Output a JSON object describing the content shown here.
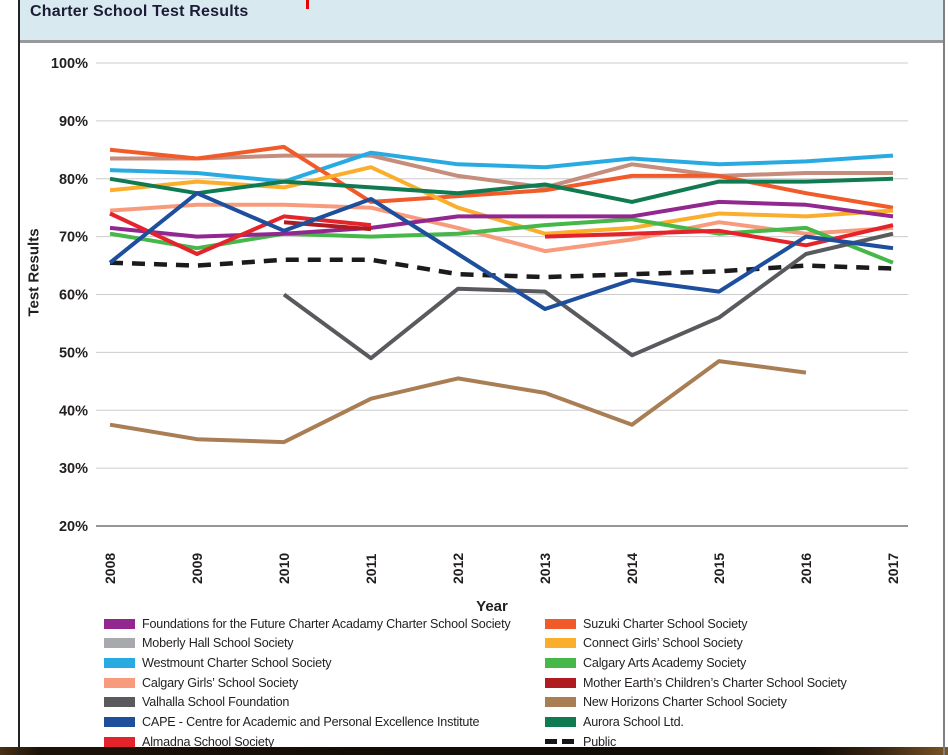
{
  "window": {
    "title_bar": {
      "title": "Charter School Test Results"
    }
  },
  "chart_data": {
    "type": "line",
    "title": "Charter School Test Results",
    "xlabel": "Year",
    "ylabel": "Test Results",
    "x": [
      "2008",
      "2009",
      "2010",
      "2011",
      "2012",
      "2013",
      "2014",
      "2015",
      "2016",
      "2017"
    ],
    "ylim": [
      20,
      100
    ],
    "yticks": [
      "100%",
      "90%",
      "80%",
      "70%",
      "60%",
      "50%",
      "40%",
      "30%",
      "20%"
    ],
    "grid": true,
    "legend_position": "bottom two-column",
    "series": [
      {
        "name": "Foundations for the Future Charter Acadamy Charter School Society",
        "color": "#92278F",
        "values": [
          71.5,
          70,
          70.5,
          71.5,
          73.5,
          73.5,
          73.5,
          76,
          75.5,
          73.5
        ]
      },
      {
        "name": "Moberly Hall School Society",
        "color": "#C68C7C",
        "legend_color": "#A7A9AC",
        "values": [
          83.5,
          83.5,
          84,
          84,
          80.5,
          78.5,
          82.5,
          80.5,
          81,
          81
        ]
      },
      {
        "name": "Westmount Charter School Society",
        "color": "#29ABE2",
        "values": [
          81.5,
          81,
          79.5,
          84.5,
          82.5,
          82,
          83.5,
          82.5,
          83,
          84
        ]
      },
      {
        "name": "Calgary Girls’ School Society",
        "color": "#F89B7C",
        "values": [
          74.5,
          75.5,
          75.5,
          75,
          71.5,
          67.5,
          69.5,
          72.5,
          70.5,
          71.5
        ]
      },
      {
        "name": "Valhalla School Foundation",
        "color": "#585A5E",
        "values": [
          null,
          null,
          60,
          49,
          61,
          60.5,
          49.5,
          56,
          67,
          70.5
        ]
      },
      {
        "name": "CAPE - Centre for Academic and Personal Excellence Institute",
        "color": "#1D4F9C",
        "values": [
          65.5,
          77.5,
          71,
          76.5,
          67,
          57.5,
          62.5,
          60.5,
          70,
          68
        ]
      },
      {
        "name": "Almadna School Society",
        "color": "#E5232A",
        "values": [
          74,
          67,
          73.5,
          72,
          null,
          70,
          70.5,
          71,
          68.5,
          72
        ]
      },
      {
        "name": "Suzuki Charter School Society",
        "color": "#F15A29",
        "values": [
          85,
          83.5,
          85.5,
          76,
          77,
          78,
          80.5,
          80.5,
          77.5,
          75
        ]
      },
      {
        "name": "Connect Girls’ School Society",
        "color": "#FBAE2C",
        "values": [
          78,
          79.5,
          78.5,
          82,
          75,
          70.5,
          71.5,
          74,
          73.5,
          74.5
        ]
      },
      {
        "name": "Calgary Arts Academy Society",
        "color": "#46B749",
        "values": [
          70.5,
          68,
          70.5,
          70,
          70.5,
          72,
          73,
          70.5,
          71.5,
          65.5
        ]
      },
      {
        "name": "Mother Earth’s Children’s Charter School Society",
        "color": "#B01B20",
        "values": [
          null,
          null,
          72.5,
          71.3,
          null,
          null,
          null,
          null,
          null,
          null
        ]
      },
      {
        "name": "New Horizons Charter School Society",
        "color": "#A97E55",
        "values": [
          37.5,
          35,
          34.5,
          42,
          45.5,
          43,
          37.5,
          48.5,
          46.5,
          null
        ]
      },
      {
        "name": "Aurora School Ltd.",
        "color": "#107B51",
        "values": [
          80,
          77.5,
          79.5,
          78.5,
          77.5,
          79,
          76,
          79.5,
          79.5,
          80
        ]
      },
      {
        "name": "Public",
        "color": "#1B1B1B",
        "dash": true,
        "values": [
          65.5,
          65,
          66,
          66,
          63.5,
          63,
          63.5,
          64,
          65,
          64.5
        ]
      }
    ]
  }
}
